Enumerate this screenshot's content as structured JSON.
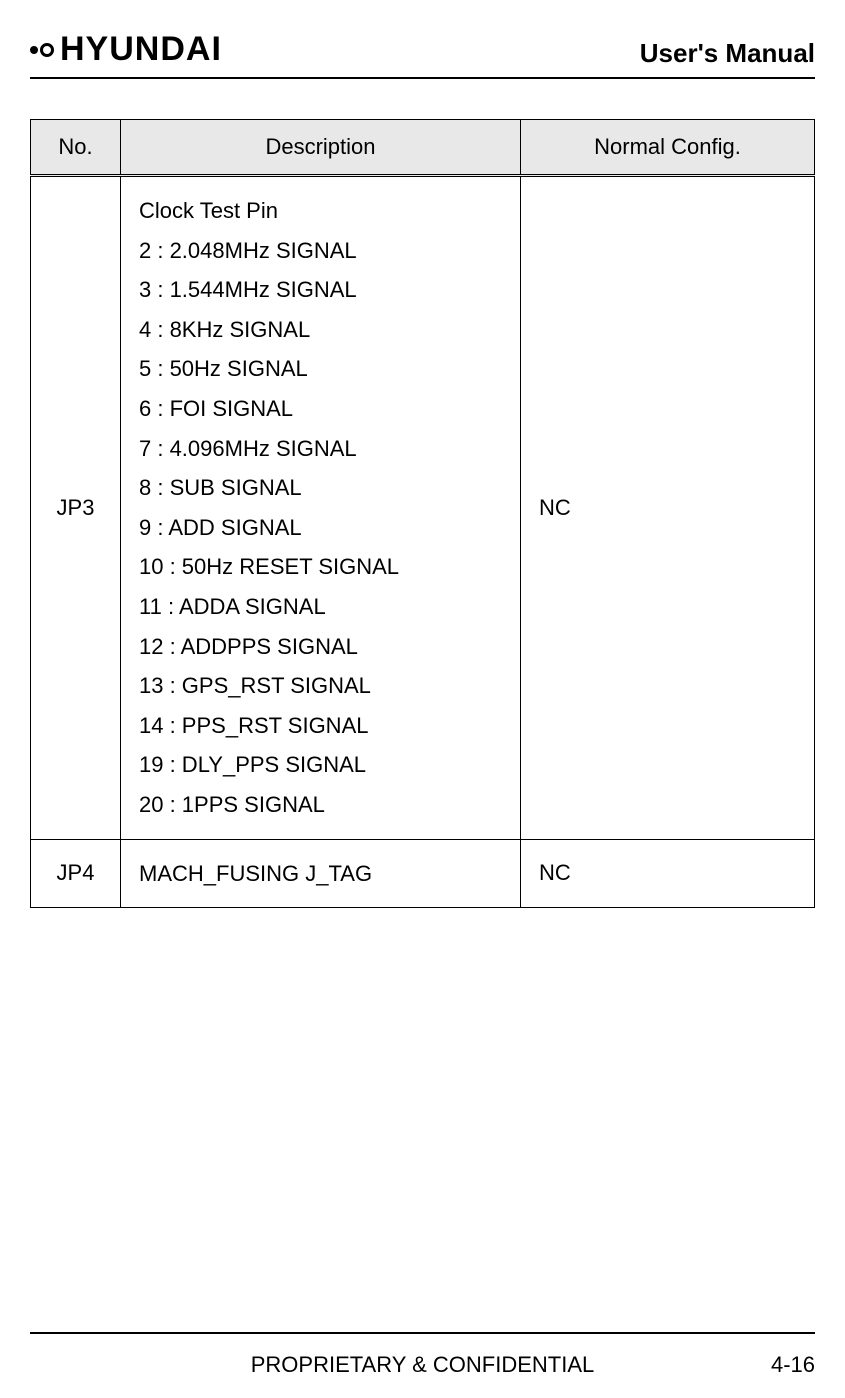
{
  "header": {
    "logo_text": "HYUNDAI",
    "manual_title": "User's Manual"
  },
  "table": {
    "headers": {
      "no": "No.",
      "description": "Description",
      "config": "Normal Config."
    },
    "rows": [
      {
        "no": "JP3",
        "description_title": "Clock Test Pin",
        "description_items": [
          "2 : 2.048MHz SIGNAL",
          "3 : 1.544MHz SIGNAL",
          "4 : 8KHz SIGNAL",
          "5 : 50Hz SIGNAL",
          "6 : FOI SIGNAL",
          "7 : 4.096MHz SIGNAL",
          "8 : SUB SIGNAL",
          "9 : ADD SIGNAL",
          "10 : 50Hz RESET SIGNAL",
          "11 : ADDA SIGNAL",
          "12 : ADDPPS SIGNAL",
          "13 : GPS_RST SIGNAL",
          "14 : PPS_RST SIGNAL",
          "19 : DLY_PPS SIGNAL",
          "20 : 1PPS SIGNAL"
        ],
        "config": "NC"
      },
      {
        "no": "JP4",
        "description_title": "MACH_FUSING J_TAG",
        "description_items": [],
        "config": "NC"
      }
    ]
  },
  "footer": {
    "center": "PROPRIETARY & CONFIDENTIAL",
    "page": "4-16"
  }
}
